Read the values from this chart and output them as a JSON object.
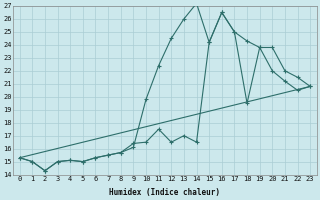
{
  "xlabel": "Humidex (Indice chaleur)",
  "xlim": [
    -0.5,
    23.5
  ],
  "ylim": [
    14,
    27
  ],
  "yticks": [
    14,
    15,
    16,
    17,
    18,
    19,
    20,
    21,
    22,
    23,
    24,
    25,
    26,
    27
  ],
  "xticks": [
    0,
    1,
    2,
    3,
    4,
    5,
    6,
    7,
    8,
    9,
    10,
    11,
    12,
    13,
    14,
    15,
    16,
    17,
    18,
    19,
    20,
    21,
    22,
    23
  ],
  "bg_color": "#cce8ec",
  "grid_color": "#aacdd4",
  "line_color": "#2d6e6a",
  "line1_x": [
    0,
    1,
    2,
    3,
    4,
    5,
    6,
    7,
    8,
    9,
    10,
    11,
    12,
    13,
    14,
    15,
    16,
    17,
    18,
    19,
    20,
    21,
    22,
    23
  ],
  "line1_y": [
    15.3,
    15.0,
    14.3,
    15.0,
    15.1,
    15.0,
    15.3,
    15.5,
    15.7,
    16.1,
    19.8,
    22.4,
    24.5,
    26.0,
    27.2,
    24.2,
    26.5,
    25.0,
    24.3,
    23.8,
    22.0,
    21.2,
    20.5,
    20.8
  ],
  "line2_x": [
    0,
    1,
    2,
    3,
    4,
    5,
    6,
    7,
    8,
    9,
    10,
    11,
    12,
    13,
    14,
    15,
    16,
    17,
    18,
    19,
    20,
    21,
    22,
    23
  ],
  "line2_y": [
    15.3,
    15.0,
    14.3,
    15.0,
    15.1,
    15.0,
    15.3,
    15.5,
    15.7,
    16.4,
    16.5,
    17.5,
    16.5,
    17.0,
    16.5,
    24.2,
    26.5,
    25.0,
    19.5,
    23.8,
    23.8,
    22.0,
    21.5,
    20.8
  ],
  "line3_x": [
    0,
    23
  ],
  "line3_y": [
    15.3,
    20.8
  ]
}
